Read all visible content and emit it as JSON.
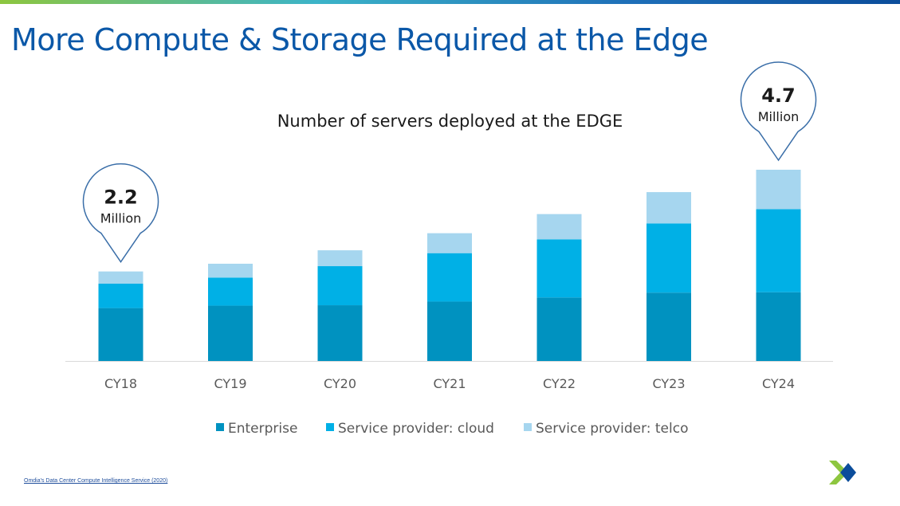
{
  "slide": {
    "title": "More Compute & Storage Required at the Edge",
    "source": "Omdia's Data Center Compute Intelligence Service (2020)"
  },
  "colors": {
    "enterprise": "#0092c0",
    "cloud": "#00b0e6",
    "telco": "#a6d6ef",
    "title": "#0b58a8",
    "callout_border": "#3a6ea8",
    "logo_green": "#8dc63f",
    "logo_blue": "#0b4d9b"
  },
  "logo_icon": "nutanix-x-logo",
  "chart_data": {
    "type": "bar",
    "stacked": true,
    "title": "Number of servers deployed at the EDGE",
    "categories": [
      "CY18",
      "CY19",
      "CY20",
      "CY21",
      "CY22",
      "CY23",
      "CY24"
    ],
    "series": [
      {
        "name": "Enterprise",
        "values": [
          1.3,
          1.36,
          1.37,
          1.46,
          1.56,
          1.68,
          1.69
        ]
      },
      {
        "name": "Service provider: cloud",
        "values": [
          0.6,
          0.69,
          0.96,
          1.19,
          1.43,
          1.7,
          2.04
        ]
      },
      {
        "name": "Service provider: telco",
        "values": [
          0.3,
          0.34,
          0.39,
          0.49,
          0.62,
          0.77,
          0.97
        ]
      }
    ],
    "ylim": [
      0,
      4.7
    ],
    "legend": "bottom",
    "grid": false,
    "callouts": [
      {
        "category": "CY18",
        "value": "2.2",
        "unit": "Million"
      },
      {
        "category": "CY24",
        "value": "4.7",
        "unit": "Million"
      }
    ]
  }
}
